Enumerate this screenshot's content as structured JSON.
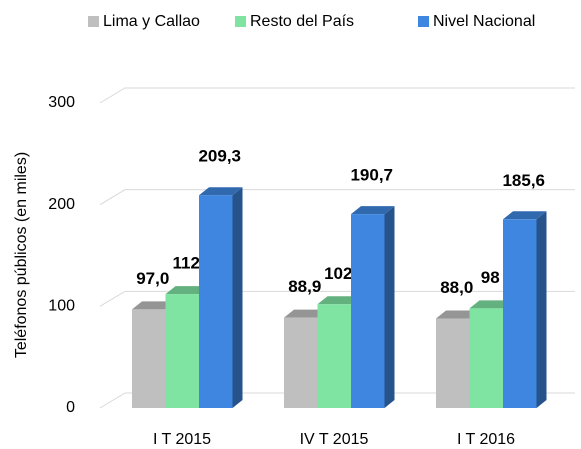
{
  "chart_data": {
    "type": "bar3d",
    "y_label": "Teléfonos públicos (en miles)",
    "categories": [
      "I T 2015",
      "IV T 2015",
      "I T 2016"
    ],
    "series": [
      {
        "name": "Lima y Callao",
        "color": "#bfbfbf",
        "values": [
          97.0,
          88.9,
          88.0
        ],
        "value_labels": [
          "97,0",
          "88,9",
          "88,0"
        ]
      },
      {
        "name": "Resto del País",
        "color": "#7fe3a2",
        "values": [
          112,
          102,
          98
        ],
        "value_labels": [
          "112",
          "102",
          "98"
        ]
      },
      {
        "name": "Nivel Nacional",
        "color": "#3f86e0",
        "values": [
          209.3,
          190.7,
          185.6
        ],
        "value_labels": [
          "209,3",
          "190,7",
          "185,6"
        ]
      }
    ],
    "ylim": [
      0,
      300
    ],
    "yticks": [
      0,
      100,
      200,
      300
    ],
    "grid": true,
    "legend": "top"
  }
}
